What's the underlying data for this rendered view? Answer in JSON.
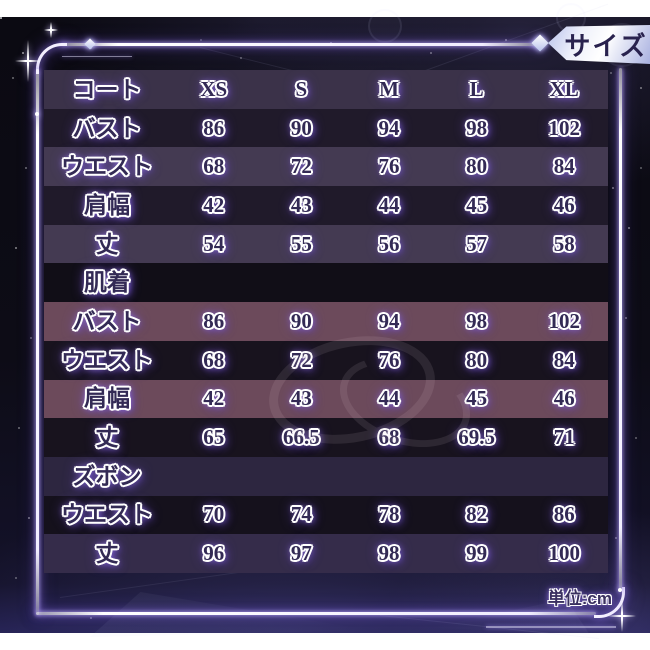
{
  "badge": {
    "label": "サイズ"
  },
  "unit_label": "単位:cm",
  "chart_data": {
    "type": "table",
    "title": "サイズ",
    "unit_note": "単位:cm",
    "unit": "cm",
    "columns": [
      "XS",
      "S",
      "M",
      "L",
      "XL"
    ],
    "sections": [
      {
        "name": "コート",
        "header_merged_with_columns": true,
        "section_row_variant": "header",
        "row_variants": [
          "dark",
          "light",
          "dark",
          "light"
        ],
        "rows": [
          {
            "label": "バスト",
            "values": [
              "86",
              "90",
              "94",
              "98",
              "102"
            ]
          },
          {
            "label": "ウエスト",
            "values": [
              "68",
              "72",
              "76",
              "80",
              "84"
            ]
          },
          {
            "label": "肩幅",
            "values": [
              "42",
              "43",
              "44",
              "45",
              "46"
            ]
          },
          {
            "label": "丈",
            "values": [
              "54",
              "55",
              "56",
              "57",
              "58"
            ]
          }
        ]
      },
      {
        "name": "肌着",
        "section_row_variant": "section-dark",
        "row_variants": [
          "mauve",
          "dark2",
          "mauve",
          "dark2"
        ],
        "rows": [
          {
            "label": "バスト",
            "values": [
              "86",
              "90",
              "94",
              "98",
              "102"
            ]
          },
          {
            "label": "ウエスト",
            "values": [
              "68",
              "72",
              "76",
              "80",
              "84"
            ]
          },
          {
            "label": "肩幅",
            "values": [
              "42",
              "43",
              "44",
              "45",
              "46"
            ]
          },
          {
            "label": "丈",
            "values": [
              "65",
              "66.5",
              "68",
              "69.5",
              "71"
            ]
          }
        ]
      },
      {
        "name": "ズボン",
        "section_row_variant": "section-purple",
        "row_variants": [
          "dark3",
          "purple"
        ],
        "rows": [
          {
            "label": "ウエスト",
            "values": [
              "70",
              "74",
              "78",
              "82",
              "86"
            ]
          },
          {
            "label": "丈",
            "values": [
              "96",
              "97",
              "98",
              "99",
              "100"
            ]
          }
        ]
      }
    ]
  }
}
